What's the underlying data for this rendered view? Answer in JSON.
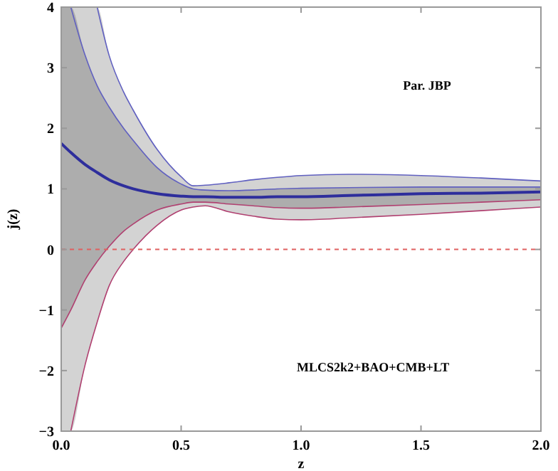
{
  "chart_data": {
    "type": "line",
    "xlabel": "z",
    "ylabel": "j(z)",
    "x": [
      0,
      0.04,
      0.1,
      0.15,
      0.2,
      0.26,
      0.3,
      0.4,
      0.5,
      0.55,
      0.6,
      0.7,
      0.8,
      0.9,
      1.0,
      1.2,
      1.5,
      1.75,
      2.0
    ],
    "series": [
      {
        "color": "#2e2e9c",
        "values": [
          1.75,
          1.6,
          1.4,
          1.27,
          1.15,
          1.05,
          1.0,
          0.92,
          0.88,
          0.87,
          0.87,
          0.86,
          0.86,
          0.87,
          0.87,
          0.89,
          0.92,
          0.93,
          0.95
        ],
        "lower": [
          -3,
          -3,
          -1.9,
          -1.2,
          -0.6,
          -0.2,
          0.0,
          0.4,
          0.65,
          0.7,
          0.72,
          0.62,
          0.55,
          0.5,
          0.49,
          0.52,
          0.58,
          0.64,
          0.7
        ],
        "upper": [
          4,
          4,
          4,
          4,
          3.2,
          2.6,
          2.3,
          1.65,
          1.2,
          1.05,
          1.06,
          1.1,
          1.15,
          1.19,
          1.22,
          1.24,
          1.22,
          1.18,
          1.13
        ]
      },
      {
        "color": "#6060c0",
        "values": [
          null,
          4,
          3.2,
          2.7,
          2.35,
          2.0,
          1.8,
          1.35,
          1.08,
          1.0,
          0.98,
          0.97,
          0.98,
          1.0,
          1.01,
          1.02,
          1.03,
          1.03,
          1.03
        ],
        "lower": [
          -1.3,
          -1.0,
          -0.5,
          -0.2,
          0.05,
          0.3,
          0.42,
          0.65,
          0.75,
          0.78,
          0.78,
          0.75,
          0.72,
          0.69,
          0.68,
          0.7,
          0.74,
          0.78,
          0.82
        ],
        "upper": [
          4,
          4,
          3.2,
          2.7,
          2.35,
          2.0,
          1.8,
          1.35,
          1.08,
          1.0,
          0.98,
          0.97,
          0.98,
          1.0,
          1.01,
          1.02,
          1.03,
          1.03,
          1.03
        ]
      },
      {
        "color": "#b04070",
        "values": [
          -1.3,
          -1.0,
          -0.5,
          -0.2,
          0.05,
          0.3,
          0.42,
          0.65,
          0.75,
          0.78,
          0.78,
          0.75,
          0.72,
          0.69,
          0.68,
          0.7,
          0.74,
          0.78,
          0.82
        ]
      },
      {
        "color": "#6060c0",
        "values": [
          null,
          null,
          null,
          4,
          3.2,
          2.6,
          2.3,
          1.65,
          1.2,
          1.05,
          1.06,
          1.1,
          1.15,
          1.19,
          1.22,
          1.24,
          1.22,
          1.18,
          1.13
        ]
      },
      {
        "color": "#b04070",
        "values": [
          null,
          -3,
          -1.9,
          -1.2,
          -0.6,
          -0.2,
          0.0,
          0.4,
          0.65,
          0.7,
          0.72,
          0.62,
          0.55,
          0.5,
          0.49,
          0.52,
          0.58,
          0.64,
          0.7
        ]
      }
    ],
    "xlim": [
      0,
      2
    ],
    "ylim": [
      -3,
      4
    ],
    "xticks": [
      {
        "value": 0,
        "label": "0.0"
      },
      {
        "value": 0.5,
        "label": "0.5"
      },
      {
        "value": 1,
        "label": "1.0"
      },
      {
        "value": 1.5,
        "label": "1.5"
      },
      {
        "value": 2,
        "label": "2.0"
      }
    ],
    "yticks": [
      -3,
      -2,
      -1,
      0,
      1,
      2,
      3,
      4
    ],
    "ref_lines": [
      {
        "axis": "y",
        "value": 0,
        "color": "#e06060",
        "line_style": "dashed"
      }
    ],
    "annotations": [
      "Par. JBP",
      "MLCS2k2+BAO+CMB+LT"
    ],
    "grid": false,
    "marker": "none"
  }
}
